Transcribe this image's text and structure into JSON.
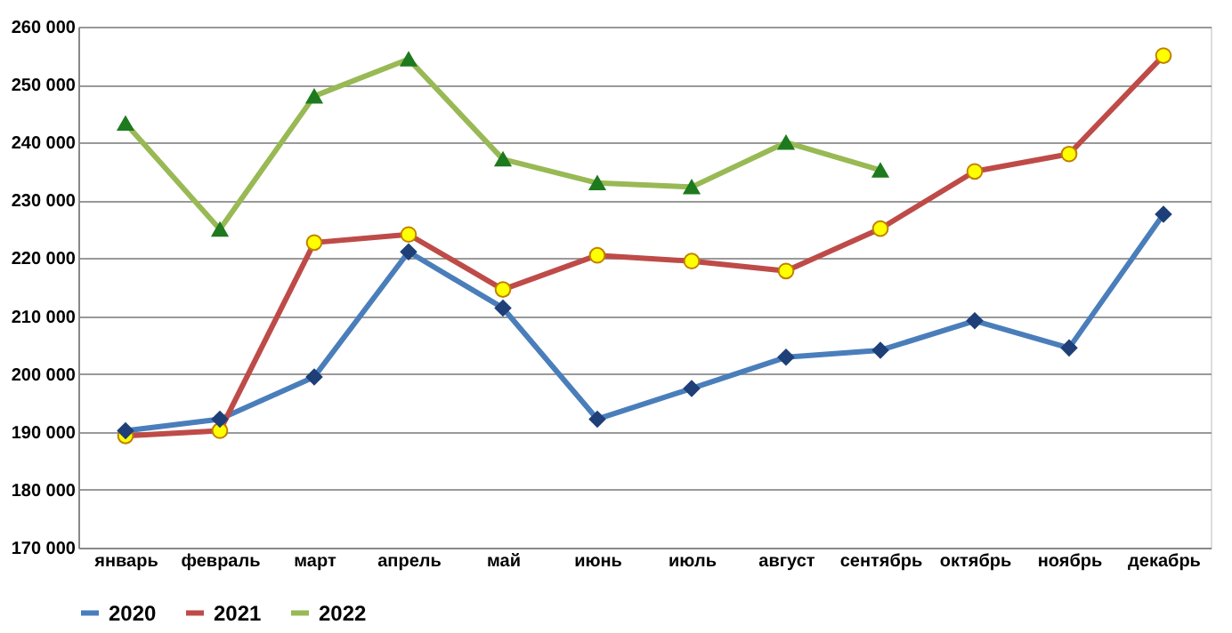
{
  "chart_data": {
    "type": "line",
    "categories": [
      "январь",
      "февраль",
      "март",
      "апрель",
      "май",
      "июнь",
      "июль",
      "август",
      "сентябрь",
      "октябрь",
      "ноябрь",
      "декабрь"
    ],
    "series": [
      {
        "name": "2020",
        "color": "#4a7ebb",
        "marker": "diamond",
        "values": [
          190200,
          192200,
          199500,
          221100,
          211400,
          192200,
          197500,
          202900,
          204100,
          209200,
          204500,
          227600
        ]
      },
      {
        "name": "2021",
        "color": "#be4b48",
        "marker": "circle",
        "values": [
          189300,
          190200,
          222700,
          224100,
          214600,
          220500,
          219500,
          217800,
          225100,
          235000,
          238000,
          255000
        ]
      },
      {
        "name": "2022",
        "color": "#98b954",
        "marker": "triangle",
        "values": [
          243300,
          225000,
          248000,
          254400,
          237100,
          233000,
          232300,
          240000,
          235200,
          null,
          null,
          null
        ]
      }
    ],
    "ylim": [
      170000,
      260000
    ],
    "yticks": [
      {
        "value": 170000,
        "label": "170 000"
      },
      {
        "value": 180000,
        "label": "180 000"
      },
      {
        "value": 190000,
        "label": "190 000"
      },
      {
        "value": 200000,
        "label": "200 000"
      },
      {
        "value": 210000,
        "label": "210 000"
      },
      {
        "value": 220000,
        "label": "220 000"
      },
      {
        "value": 230000,
        "label": "230 000"
      },
      {
        "value": 240000,
        "label": "240 000"
      },
      {
        "value": 250000,
        "label": "250 000"
      },
      {
        "value": 260000,
        "label": "260 000"
      }
    ],
    "grid": "y",
    "legend": "bottom",
    "line_style": "solid"
  }
}
